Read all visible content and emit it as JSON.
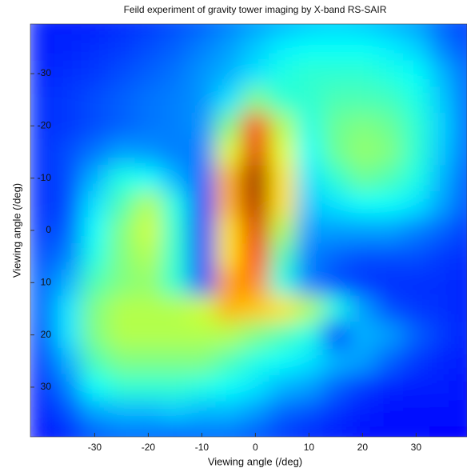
{
  "chart_data": {
    "type": "heatmap",
    "title": "Feild experiment of gravity tower imaging by X-band RS-SAIR",
    "xlabel": "Viewing angle (/deg)",
    "ylabel": "Viewing angle (/deg)",
    "colormap": "jet",
    "xlim": [
      -42,
      39.5
    ],
    "ylim": [
      -39.5,
      39.5
    ],
    "y_reversed": true,
    "xticks": [
      -30,
      -20,
      -10,
      0,
      10,
      20,
      30
    ],
    "yticks": [
      -30,
      -20,
      -10,
      0,
      10,
      20,
      30
    ],
    "x": [
      -40,
      -35,
      -30,
      -25,
      -20,
      -15,
      -10,
      -5,
      0,
      5,
      10,
      15,
      20,
      25,
      30,
      35,
      40
    ],
    "y": [
      -40,
      -35,
      -30,
      -25,
      -20,
      -15,
      -10,
      -5,
      0,
      5,
      10,
      15,
      20,
      25,
      30,
      35,
      40
    ],
    "z": [
      [
        0.15,
        0.15,
        0.15,
        0.17,
        0.18,
        0.2,
        0.22,
        0.25,
        0.28,
        0.3,
        0.32,
        0.33,
        0.32,
        0.3,
        0.28,
        0.22,
        0.18
      ],
      [
        0.15,
        0.16,
        0.17,
        0.18,
        0.2,
        0.22,
        0.25,
        0.28,
        0.32,
        0.36,
        0.38,
        0.38,
        0.38,
        0.36,
        0.33,
        0.25,
        0.2
      ],
      [
        0.16,
        0.17,
        0.18,
        0.2,
        0.22,
        0.24,
        0.27,
        0.3,
        0.35,
        0.4,
        0.42,
        0.42,
        0.42,
        0.4,
        0.38,
        0.3,
        0.22
      ],
      [
        0.17,
        0.18,
        0.2,
        0.22,
        0.24,
        0.25,
        0.27,
        0.35,
        0.5,
        0.42,
        0.42,
        0.45,
        0.45,
        0.44,
        0.4,
        0.32,
        0.22
      ],
      [
        0.17,
        0.18,
        0.2,
        0.22,
        0.24,
        0.25,
        0.27,
        0.5,
        0.85,
        0.55,
        0.4,
        0.48,
        0.5,
        0.48,
        0.42,
        0.33,
        0.22
      ],
      [
        0.17,
        0.2,
        0.24,
        0.28,
        0.27,
        0.25,
        0.25,
        0.6,
        0.9,
        0.6,
        0.38,
        0.48,
        0.52,
        0.5,
        0.42,
        0.32,
        0.22
      ],
      [
        0.17,
        0.2,
        0.3,
        0.4,
        0.38,
        0.3,
        0.22,
        0.7,
        0.97,
        0.65,
        0.35,
        0.42,
        0.48,
        0.45,
        0.4,
        0.3,
        0.2
      ],
      [
        0.17,
        0.2,
        0.35,
        0.45,
        0.55,
        0.4,
        0.18,
        0.7,
        0.95,
        0.65,
        0.32,
        0.35,
        0.38,
        0.38,
        0.35,
        0.28,
        0.2
      ],
      [
        0.18,
        0.22,
        0.38,
        0.5,
        0.58,
        0.42,
        0.17,
        0.65,
        0.9,
        0.55,
        0.28,
        0.28,
        0.28,
        0.28,
        0.25,
        0.22,
        0.18
      ],
      [
        0.2,
        0.25,
        0.4,
        0.5,
        0.55,
        0.42,
        0.18,
        0.65,
        0.85,
        0.45,
        0.25,
        0.22,
        0.2,
        0.2,
        0.2,
        0.18,
        0.17
      ],
      [
        0.22,
        0.3,
        0.45,
        0.5,
        0.52,
        0.42,
        0.2,
        0.72,
        0.75,
        0.4,
        0.25,
        0.2,
        0.18,
        0.17,
        0.17,
        0.17,
        0.16
      ],
      [
        0.22,
        0.35,
        0.5,
        0.55,
        0.55,
        0.55,
        0.58,
        0.7,
        0.68,
        0.65,
        0.55,
        0.4,
        0.28,
        0.2,
        0.18,
        0.17,
        0.16
      ],
      [
        0.2,
        0.35,
        0.5,
        0.55,
        0.55,
        0.55,
        0.55,
        0.55,
        0.5,
        0.45,
        0.4,
        0.15,
        0.3,
        0.28,
        0.22,
        0.18,
        0.16
      ],
      [
        0.18,
        0.3,
        0.45,
        0.5,
        0.5,
        0.5,
        0.5,
        0.45,
        0.4,
        0.38,
        0.35,
        0.3,
        0.28,
        0.22,
        0.18,
        0.16,
        0.15
      ],
      [
        0.16,
        0.25,
        0.38,
        0.42,
        0.42,
        0.42,
        0.4,
        0.38,
        0.35,
        0.3,
        0.28,
        0.22,
        0.18,
        0.16,
        0.15,
        0.15,
        0.14
      ],
      [
        0.15,
        0.2,
        0.28,
        0.3,
        0.3,
        0.32,
        0.3,
        0.3,
        0.27,
        0.22,
        0.2,
        0.17,
        0.15,
        0.14,
        0.14,
        0.14,
        0.14
      ],
      [
        0.14,
        0.16,
        0.2,
        0.22,
        0.22,
        0.2,
        0.22,
        0.22,
        0.2,
        0.18,
        0.16,
        0.15,
        0.14,
        0.14,
        0.14,
        0.13,
        0.13
      ]
    ]
  }
}
